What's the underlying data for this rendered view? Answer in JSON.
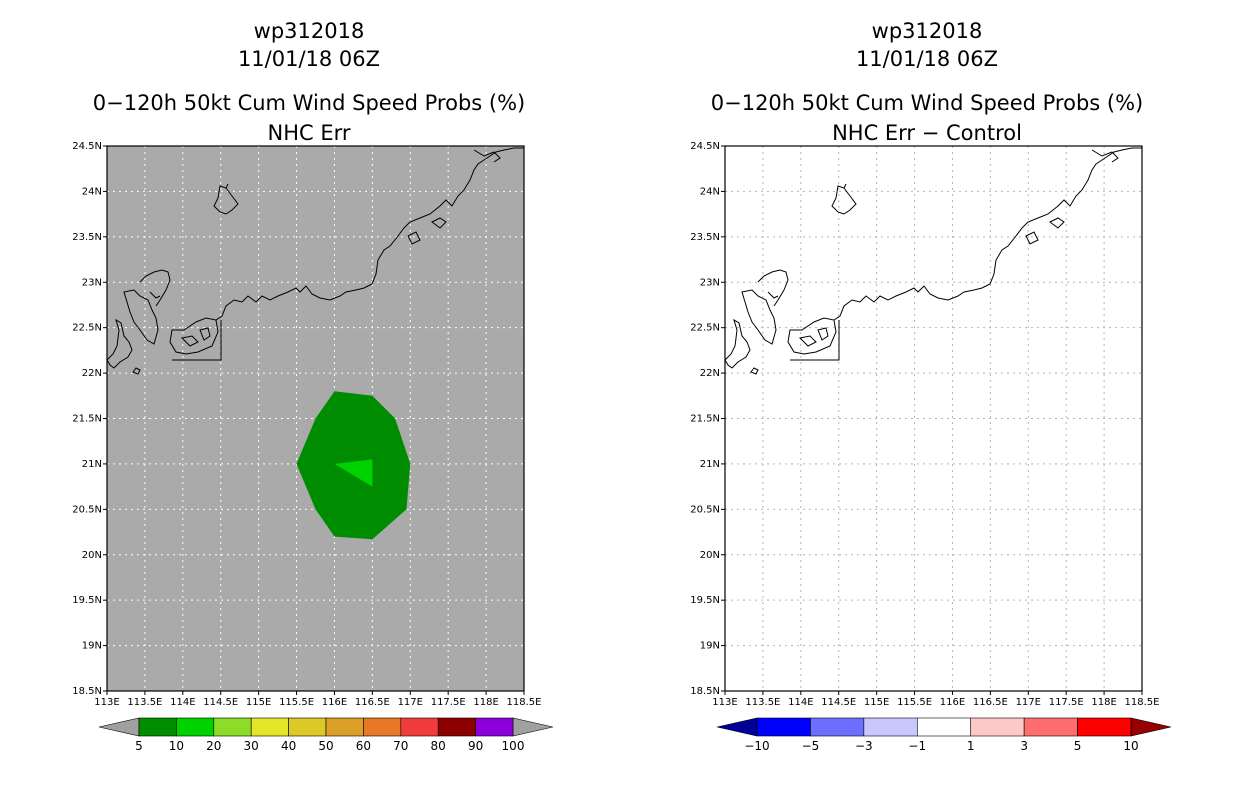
{
  "panels": [
    {
      "storm_id": "wp312018",
      "datetime": "11/01/18 06Z",
      "product": "0−120h 50kt Cum Wind Speed Probs (%)",
      "subtitle": "NHC Err",
      "background": "#aaaaaa",
      "grid_color": "#ffffff",
      "colorbar_labels": [
        "5",
        "10",
        "20",
        "30",
        "40",
        "50",
        "60",
        "70",
        "80",
        "90",
        "100"
      ],
      "colorbar_colors": [
        "#008c00",
        "#00d200",
        "#8cdc28",
        "#e6e628",
        "#dcc828",
        "#dca028",
        "#e67828",
        "#f03c3c",
        "#8c0000",
        "#8c00dc"
      ],
      "colorbar_end_colors": [
        "#a0a0a0",
        "#a0a0a0"
      ]
    },
    {
      "storm_id": "wp312018",
      "datetime": "11/01/18 06Z",
      "product": "0−120h 50kt Cum Wind Speed Probs (%)",
      "subtitle": "NHC Err − Control",
      "background": "#ffffff",
      "grid_color": "#b4b4b4",
      "colorbar_labels": [
        "−10",
        "−5",
        "−3",
        "−1",
        "1",
        "3",
        "5",
        "10"
      ],
      "colorbar_colors": [
        "#0000ff",
        "#6e6eff",
        "#c8c8ff",
        "#ffffff",
        "#ffc8c8",
        "#ff6e6e",
        "#ff0000"
      ],
      "colorbar_end_colors": [
        "#000096",
        "#960000"
      ]
    }
  ],
  "map": {
    "lon_labels": [
      "113E",
      "113.5E",
      "114E",
      "114.5E",
      "115E",
      "115.5E",
      "116E",
      "116.5E",
      "117E",
      "117.5E",
      "118E",
      "118.5E"
    ],
    "lat_labels": [
      "18.5N",
      "19N",
      "19.5N",
      "20N",
      "20.5N",
      "21N",
      "21.5N",
      "22N",
      "22.5N",
      "23N",
      "23.5N",
      "24N",
      "24.5N"
    ],
    "lon_range": [
      113,
      118.5
    ],
    "lat_range": [
      18.5,
      24.5
    ]
  },
  "probability_contours": {
    "outer_5pct": {
      "color": "#008c00",
      "points": [
        [
          116.0,
          21.8
        ],
        [
          116.5,
          21.75
        ],
        [
          116.8,
          21.5
        ],
        [
          117.0,
          21.0
        ],
        [
          116.95,
          20.5
        ],
        [
          116.5,
          20.17
        ],
        [
          116.0,
          20.2
        ],
        [
          115.75,
          20.5
        ],
        [
          115.5,
          21.0
        ],
        [
          115.75,
          21.5
        ]
      ]
    },
    "inner_10pct": {
      "color": "#00d200",
      "points": [
        [
          116.0,
          21.0
        ],
        [
          116.5,
          21.05
        ],
        [
          116.5,
          20.75
        ]
      ]
    }
  }
}
